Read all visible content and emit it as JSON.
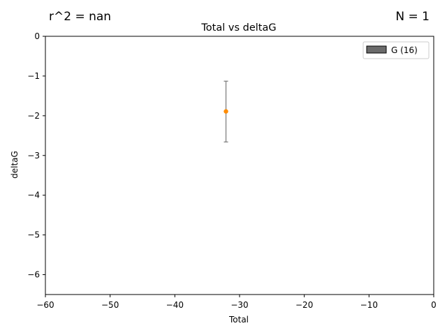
{
  "figure": {
    "r2_text": "r^2 = nan",
    "n_text": "N = 1"
  },
  "chart_data": {
    "type": "scatter",
    "title": "Total vs deltaG",
    "xlabel": "Total",
    "ylabel": "deltaG",
    "xlim": [
      -60,
      0
    ],
    "ylim": [
      -6.5,
      0
    ],
    "x_ticks": [
      -60,
      -50,
      -40,
      -30,
      -20,
      -10,
      0
    ],
    "y_ticks": [
      0,
      -1,
      -2,
      -3,
      -4,
      -5,
      -6
    ],
    "x_tick_labels": [
      "−60",
      "−50",
      "−40",
      "−30",
      "−20",
      "−10",
      "0"
    ],
    "y_tick_labels": [
      "0",
      "−1",
      "−2",
      "−3",
      "−4",
      "−5",
      "−6"
    ],
    "grid": false,
    "legend": {
      "placement": "upper-right",
      "entries": [
        {
          "label": "G (16)",
          "color": "#6b6b6b"
        }
      ]
    },
    "series": [
      {
        "name": "G (16)",
        "color": "#ff8c00",
        "error_color": "#808080",
        "points": [
          {
            "x": -32.1,
            "y": -1.89,
            "yerr_low": -2.66,
            "yerr_high": -1.13
          }
        ]
      }
    ]
  }
}
